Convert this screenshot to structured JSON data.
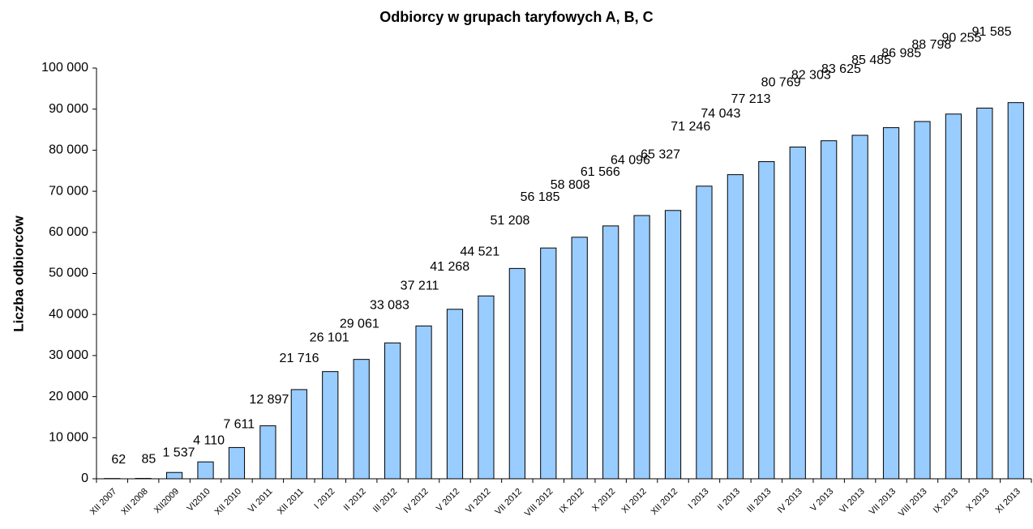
{
  "chart_data": {
    "type": "bar",
    "title": "Odbiorcy w grupach taryfowych A, B, C",
    "y_label": "Liczba odbiorców",
    "categories": [
      "XII 2007",
      "XII 2008",
      "XII2009",
      "VI2010",
      "XII 2010",
      "VI 2011",
      "XII 2011",
      "I 2012",
      "II 2012",
      "III 2012",
      "IV 2012",
      "V 2012",
      "VI 2012",
      "VII 2012",
      "VIII 2012",
      "IX 2012",
      "X 2012",
      "XI 2012",
      "XII 2012",
      "I 2013",
      "II 2013",
      "III 2013",
      "IV 2013",
      "V 2013",
      "VI 2013",
      "VII 2013",
      "VIII 2013",
      "IX 2013",
      "X 2013",
      "XI 2013"
    ],
    "values": [
      62,
      85,
      1537,
      4110,
      7611,
      12897,
      21716,
      26101,
      29061,
      33083,
      37211,
      41268,
      44521,
      51208,
      56185,
      58808,
      61566,
      64096,
      65327,
      71246,
      74043,
      77213,
      80769,
      82303,
      83625,
      85485,
      86985,
      88798,
      90255,
      91585
    ],
    "value_labels": [
      "62",
      "85",
      "1 537",
      "4 110",
      "7 611",
      "12 897",
      "21 716",
      "26 101",
      "29 061",
      "33 083",
      "37 211",
      "41 268",
      "44 521",
      "51 208",
      "56 185",
      "58 808",
      "61 566",
      "64 096",
      "65 327",
      "71 246",
      "74 043",
      "77 213",
      "80 769",
      "82 303",
      "83 625",
      "85 485",
      "86 985",
      "88 798",
      "90 255",
      "91 585"
    ],
    "color": "#99ccff",
    "ylim": [
      0,
      100000
    ],
    "yticks": [
      0,
      {
        "value": 10000,
        "label": "10 000"
      },
      {
        "value": 20000,
        "label": "20 000"
      },
      {
        "value": 30000,
        "label": "30 000"
      },
      {
        "value": 40000,
        "label": "40 000"
      },
      {
        "value": 50000,
        "label": "50 000"
      },
      {
        "value": 60000,
        "label": "60 000"
      },
      {
        "value": 70000,
        "label": "70 000"
      },
      {
        "value": 80000,
        "label": "80 000"
      },
      {
        "value": 90000,
        "label": "90 000"
      },
      {
        "value": 100000,
        "label": "100 000"
      }
    ],
    "grid": false
  }
}
